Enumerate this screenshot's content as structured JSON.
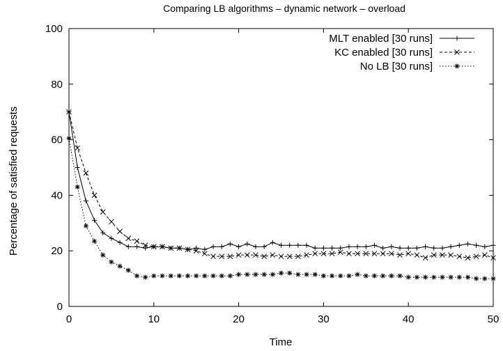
{
  "chart_data": {
    "type": "line",
    "title": "Comparing LB algorithms – dynamic network – overload",
    "xlabel": "Time",
    "ylabel": "Percentage of satisfied requests",
    "xlim": [
      0,
      50
    ],
    "ylim": [
      0,
      100
    ],
    "xticks": [
      0,
      10,
      20,
      30,
      40,
      50
    ],
    "yticks": [
      0,
      20,
      40,
      60,
      80,
      100
    ],
    "grid": false,
    "legend_position": "top-right",
    "x": [
      0,
      1,
      2,
      3,
      4,
      5,
      6,
      7,
      8,
      9,
      10,
      11,
      12,
      13,
      14,
      15,
      16,
      17,
      18,
      19,
      20,
      21,
      22,
      23,
      24,
      25,
      26,
      27,
      28,
      29,
      30,
      31,
      32,
      33,
      34,
      35,
      36,
      37,
      38,
      39,
      40,
      41,
      42,
      43,
      44,
      45,
      46,
      47,
      48,
      49,
      50
    ],
    "series": [
      {
        "name": "MLT enabled [30 runs]",
        "line_style": "solid",
        "marker": "plus",
        "values": [
          70,
          50,
          38,
          31,
          26.5,
          24.5,
          23,
          21.5,
          21.5,
          21,
          21.5,
          21.5,
          21,
          21,
          20.5,
          21,
          20.5,
          21.5,
          21.5,
          22.5,
          21.5,
          22.5,
          21.5,
          21.5,
          23,
          22,
          22,
          22,
          22,
          21,
          21,
          21,
          21,
          21.5,
          21.5,
          21.5,
          22,
          21,
          21.5,
          21,
          21,
          21,
          21.5,
          21,
          21,
          21.5,
          22,
          22.5,
          22,
          21.5,
          22
        ]
      },
      {
        "name": "KC enabled [30 runs]",
        "line_style": "dashed",
        "marker": "cross",
        "values": [
          70,
          57,
          48,
          40,
          34,
          30.5,
          27,
          24.5,
          23.5,
          22,
          21.5,
          21.5,
          21,
          21,
          20.5,
          20,
          19,
          18,
          18,
          18,
          18.5,
          18.5,
          18.5,
          18,
          18.5,
          18,
          18,
          18,
          18.5,
          19,
          19,
          19,
          19.5,
          19,
          19,
          19,
          19,
          19,
          19,
          18.5,
          19,
          18.5,
          17.5,
          18.5,
          18.5,
          18.5,
          18,
          17.5,
          18,
          18.5,
          17.5
        ]
      },
      {
        "name": "No LB [30 runs]",
        "line_style": "dotted",
        "marker": "star",
        "values": [
          60.5,
          43,
          29,
          23.5,
          18.5,
          16,
          14.5,
          13,
          11,
          10.5,
          11,
          11,
          11,
          11,
          11,
          11,
          11,
          11,
          11,
          11,
          11.5,
          11.5,
          11.5,
          11.5,
          11.5,
          12,
          12,
          11.5,
          11.5,
          11.5,
          11,
          11,
          11,
          11,
          11.5,
          11,
          11,
          11,
          11,
          11,
          10.5,
          10.5,
          10.5,
          10.5,
          10.5,
          10.5,
          10.5,
          10.5,
          10,
          10,
          10
        ]
      }
    ]
  }
}
